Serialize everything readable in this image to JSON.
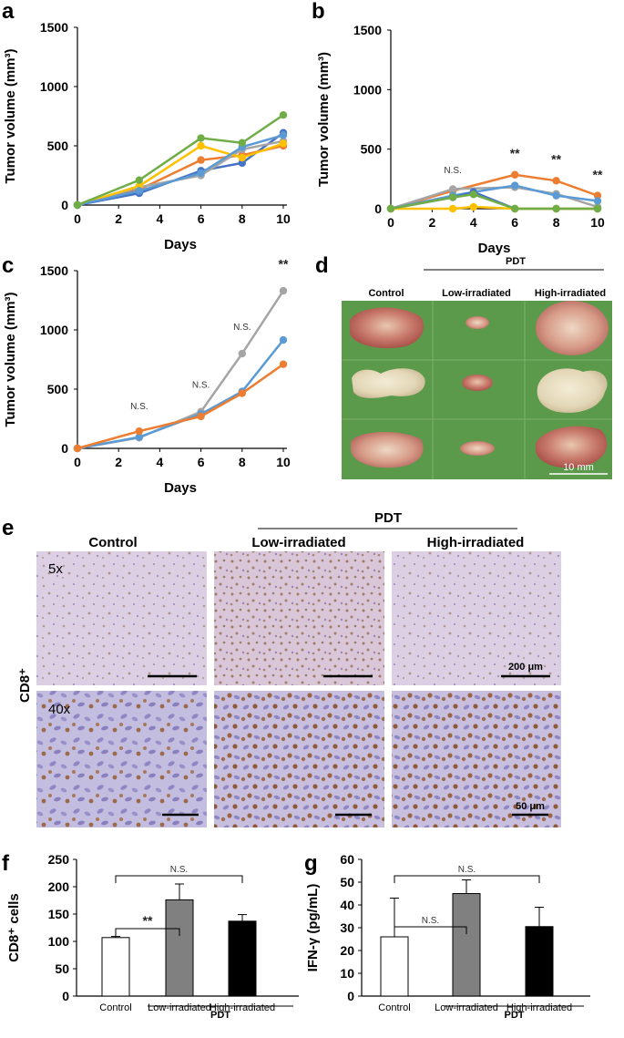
{
  "panels": {
    "a": "a",
    "b": "b",
    "c": "c",
    "d": "d",
    "e": "e",
    "f": "f",
    "g": "g"
  },
  "colors": {
    "blue": "#4472c4",
    "orange": "#ed7d31",
    "gray": "#a5a5a5",
    "yellow": "#ffc000",
    "lightblue": "#5b9bd5",
    "green": "#70ad47",
    "bar_gray": "#808080",
    "bar_black": "#000000",
    "bar_white": "#ffffff",
    "tissue_bg": "#5d9b4c",
    "ihc_bg": "#d8cbe1"
  },
  "chart_data": [
    {
      "panel": "a",
      "type": "line",
      "xlabel": "Days",
      "ylabel": "Tumor volume (mm³)",
      "xticks": [
        "0",
        "2",
        "4",
        "6",
        "8",
        "10"
      ],
      "yticks": [
        "0",
        "500",
        "1000",
        "1500"
      ],
      "xlim": [
        0,
        10
      ],
      "ylim": [
        0,
        1500
      ],
      "x": [
        0,
        3,
        6,
        8,
        10
      ],
      "series": [
        {
          "color": "blue",
          "values": [
            0,
            100,
            290,
            355,
            610
          ]
        },
        {
          "color": "orange",
          "values": [
            0,
            130,
            380,
            420,
            500
          ]
        },
        {
          "color": "gray",
          "values": [
            0,
            150,
            250,
            470,
            540
          ]
        },
        {
          "color": "yellow",
          "values": [
            0,
            160,
            500,
            400,
            520
          ]
        },
        {
          "color": "lightblue",
          "values": [
            0,
            120,
            270,
            490,
            590
          ]
        },
        {
          "color": "green",
          "values": [
            0,
            210,
            565,
            525,
            760
          ]
        }
      ]
    },
    {
      "panel": "b",
      "type": "line",
      "xlabel": "Days",
      "ylabel": "Tumor volume (mm³)",
      "xticks": [
        "0",
        "2",
        "4",
        "6",
        "8",
        "10"
      ],
      "yticks": [
        "0",
        "500",
        "1000",
        "1500"
      ],
      "xlim": [
        0,
        10
      ],
      "ylim": [
        0,
        1500
      ],
      "series": [
        {
          "color": "orange",
          "points": [
            [
              0,
              0
            ],
            [
              3,
              150
            ],
            [
              6,
              285
            ],
            [
              8,
              235
            ],
            [
              10,
              110
            ]
          ]
        },
        {
          "color": "gray",
          "points": [
            [
              0,
              0
            ],
            [
              3,
              165
            ],
            [
              6,
              180
            ],
            [
              8,
              125
            ],
            [
              10,
              15
            ]
          ]
        },
        {
          "color": "lightblue",
          "points": [
            [
              0,
              0
            ],
            [
              3,
              110
            ],
            [
              4,
              140
            ],
            [
              6,
              195
            ],
            [
              8,
              110
            ],
            [
              10,
              65
            ]
          ]
        },
        {
          "color": "blue",
          "points": [
            [
              0,
              0
            ],
            [
              3,
              95
            ],
            [
              4,
              140
            ],
            [
              6,
              0
            ],
            [
              8,
              0
            ],
            [
              10,
              0
            ]
          ]
        },
        {
          "color": "yellow",
          "points": [
            [
              0,
              0
            ],
            [
              3,
              0
            ],
            [
              4,
              15
            ],
            [
              6,
              0
            ],
            [
              8,
              0
            ],
            [
              10,
              0
            ]
          ]
        },
        {
          "color": "green",
          "points": [
            [
              0,
              0
            ],
            [
              3,
              95
            ],
            [
              4,
              120
            ],
            [
              6,
              0
            ],
            [
              8,
              0
            ],
            [
              10,
              0
            ]
          ]
        }
      ],
      "annotations": [
        {
          "x": 3,
          "y": 300,
          "text": "N.S."
        },
        {
          "x": 6,
          "y": 430,
          "text": "**"
        },
        {
          "x": 8,
          "y": 380,
          "text": "**"
        },
        {
          "x": 10,
          "y": 250,
          "text": "**"
        }
      ]
    },
    {
      "panel": "c",
      "type": "line",
      "xlabel": "Days",
      "ylabel": "Tumor volume (mm³)",
      "xticks": [
        "0",
        "2",
        "4",
        "6",
        "8",
        "10"
      ],
      "yticks": [
        "0",
        "500",
        "1000",
        "1500"
      ],
      "xlim": [
        0,
        10
      ],
      "ylim": [
        0,
        1500
      ],
      "x": [
        0,
        3,
        6,
        8,
        10
      ],
      "series": [
        {
          "color": "gray",
          "values": [
            0,
            90,
            310,
            800,
            1330
          ]
        },
        {
          "color": "lightblue",
          "values": [
            0,
            95,
            290,
            480,
            915
          ]
        },
        {
          "color": "orange",
          "values": [
            0,
            145,
            270,
            465,
            710
          ]
        }
      ],
      "annotations": [
        {
          "x": 3,
          "y": 330,
          "text": "N.S."
        },
        {
          "x": 6,
          "y": 510,
          "text": "N.S."
        },
        {
          "x": 8,
          "y": 1000,
          "text": "N.S."
        },
        {
          "x": 10,
          "y": 1520,
          "text": "**"
        }
      ]
    },
    {
      "panel": "f",
      "type": "bar",
      "ylabel": "CD8⁺ cells",
      "categories": [
        "Control",
        "Low-irradiated",
        "High-irradiated"
      ],
      "bar_colors": [
        "bar_white",
        "bar_gray",
        "bar_black"
      ],
      "values": [
        107,
        176,
        137
      ],
      "errors": [
        2,
        29,
        12
      ],
      "yticks": [
        "0",
        "50",
        "100",
        "150",
        "200",
        "250"
      ],
      "ylim": [
        0,
        250
      ],
      "group_label": "PDT",
      "significance": [
        {
          "from": 0,
          "to": 1,
          "text": "**"
        },
        {
          "from": 0,
          "to": 2,
          "text": "N.S."
        }
      ]
    },
    {
      "panel": "g",
      "type": "bar",
      "ylabel": "IFN-γ (pg/mL)",
      "categories": [
        "Control",
        "Low-irradiated",
        "High-irradiated"
      ],
      "bar_colors": [
        "bar_white",
        "bar_gray",
        "bar_black"
      ],
      "values": [
        26,
        45,
        30.5
      ],
      "errors": [
        17,
        6,
        8.5
      ],
      "yticks": [
        "0",
        "10",
        "20",
        "30",
        "40",
        "50",
        "60"
      ],
      "ylim": [
        0,
        60
      ],
      "group_label": "PDT",
      "significance": [
        {
          "from": 0,
          "to": 1,
          "text": "N.S."
        },
        {
          "from": 0,
          "to": 2,
          "text": "N.S."
        }
      ]
    }
  ],
  "panel_d": {
    "group_label": "PDT",
    "headers": [
      "Control",
      "Low-irradiated",
      "High-irradiated"
    ],
    "scale_bar": "10 mm"
  },
  "panel_e": {
    "group_label": "PDT",
    "headers": [
      "Control",
      "Low-irradiated",
      "High-irradiated"
    ],
    "row_label": "CD8⁺",
    "magnifications": [
      "5x",
      "40x"
    ],
    "scale_bars": [
      "200 μm",
      "50 μm"
    ]
  }
}
